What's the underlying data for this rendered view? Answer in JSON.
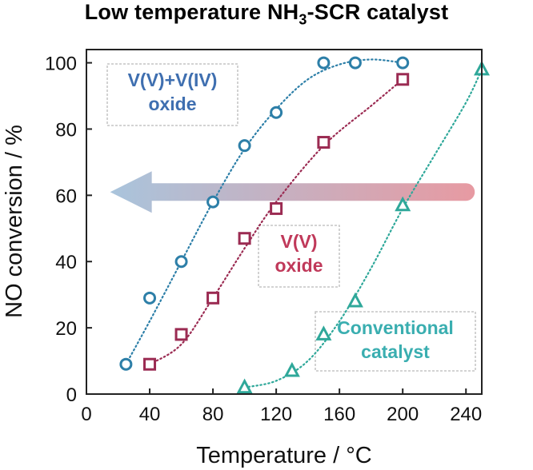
{
  "title": {
    "prefix": "Low temperature NH",
    "sub": "3",
    "suffix": "-SCR catalyst"
  },
  "colors": {
    "vv_viv": "#2d7fa8",
    "vv": "#9b2b52",
    "conventional": "#2fa89a",
    "arrow_start": "#a9c4dc",
    "arrow_end": "#e79aa2",
    "label_vv_viv": "#3f6fb0",
    "label_vv": "#c0395a",
    "label_conv": "#3aaeb0"
  },
  "chart_data": {
    "type": "scatter",
    "xlabel": "Temperature / °C",
    "ylabel": "NO conversion / %",
    "xlim": [
      0,
      250
    ],
    "ylim": [
      0,
      104
    ],
    "xticks": [
      0,
      40,
      80,
      120,
      160,
      200,
      240
    ],
    "yticks": [
      0,
      20,
      40,
      60,
      80,
      100
    ],
    "grid": false,
    "series": [
      {
        "key": "vv_viv",
        "name": [
          "V(V)+V(IV)",
          "oxide"
        ],
        "marker": "circle",
        "x": [
          25,
          40,
          60,
          80,
          100,
          120,
          150,
          170,
          200
        ],
        "y": [
          9,
          29,
          40,
          58,
          75,
          85,
          100,
          100,
          100
        ],
        "fit": [
          [
            25,
            9
          ],
          [
            40,
            22
          ],
          [
            60,
            40
          ],
          [
            80,
            58
          ],
          [
            100,
            74
          ],
          [
            120,
            86
          ],
          [
            140,
            95
          ],
          [
            160,
            99.5
          ],
          [
            180,
            101
          ],
          [
            200,
            100
          ]
        ]
      },
      {
        "key": "vv",
        "name": [
          "V(V)",
          "oxide"
        ],
        "marker": "square",
        "x": [
          40,
          60,
          80,
          100,
          120,
          150,
          200
        ],
        "y": [
          9,
          18,
          29,
          47,
          56,
          76,
          95
        ],
        "fit": [
          [
            40,
            9
          ],
          [
            60,
            15
          ],
          [
            80,
            29
          ],
          [
            100,
            44
          ],
          [
            120,
            58
          ],
          [
            150,
            75
          ],
          [
            180,
            87
          ],
          [
            200,
            95
          ]
        ]
      },
      {
        "key": "conventional",
        "name": [
          "Conventional",
          "catalyst"
        ],
        "marker": "triangle",
        "x": [
          100,
          130,
          150,
          170,
          200,
          250
        ],
        "y": [
          2,
          7,
          18,
          28,
          57,
          98
        ],
        "fit": [
          [
            100,
            2
          ],
          [
            120,
            4
          ],
          [
            140,
            10
          ],
          [
            160,
            22
          ],
          [
            180,
            38
          ],
          [
            200,
            56
          ],
          [
            220,
            72
          ],
          [
            240,
            88
          ],
          [
            250,
            98
          ]
        ]
      }
    ],
    "arrow": {
      "from_x": 240,
      "to_x": 15,
      "y": 61
    }
  }
}
